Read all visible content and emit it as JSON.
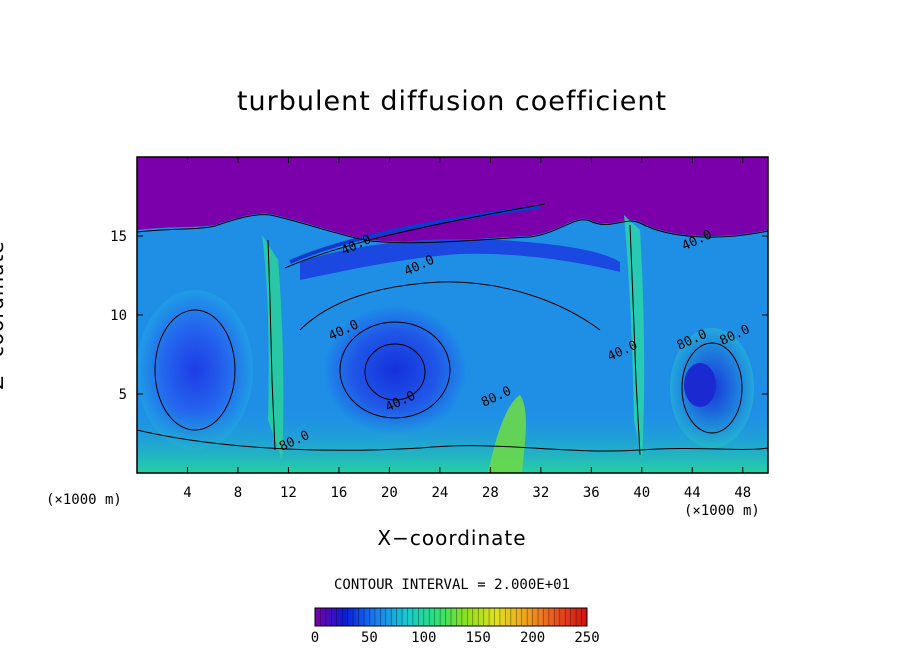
{
  "chart_data": {
    "type": "heatmap",
    "title": "turbulent diffusion coefficient",
    "xlabel": "X−coordinate",
    "ylabel": "Z−coordinate",
    "x_unit_label": "(×1000 m)",
    "y_unit_label": "(×1000 m)",
    "xlim": [
      0,
      50
    ],
    "ylim": [
      0,
      20
    ],
    "x_ticks": [
      4,
      8,
      12,
      16,
      20,
      24,
      28,
      32,
      36,
      40,
      44,
      48
    ],
    "y_ticks": [
      5,
      10,
      15
    ],
    "contour_interval_text": "CONTOUR INTERVAL = 2.000E+01",
    "contour_interval": 20,
    "colorbar": {
      "min": 0,
      "max": 250,
      "ticks": [
        0,
        50,
        100,
        150,
        200,
        250
      ],
      "colors": [
        "#7a00a8",
        "#0a1ed8",
        "#1a7cf0",
        "#19c8d0",
        "#29e07a",
        "#8ee01e",
        "#e0e01e",
        "#f0a01e",
        "#e8501e",
        "#d01010"
      ]
    },
    "background_color": "#7b00ac",
    "contour_labels": [
      {
        "text": "40.0",
        "x": 17.5,
        "z": 14.2
      },
      {
        "text": "40.0",
        "x": 22.5,
        "z": 12.9
      },
      {
        "text": "40.0",
        "x": 16.5,
        "z": 8.8
      },
      {
        "text": "40.0",
        "x": 21.0,
        "z": 4.3
      },
      {
        "text": "40.0",
        "x": 44.5,
        "z": 14.5
      },
      {
        "text": "80.0",
        "x": 28.6,
        "z": 4.6
      },
      {
        "text": "80.0",
        "x": 44.1,
        "z": 8.2
      },
      {
        "text": "80.0",
        "x": 47.5,
        "z": 8.5
      },
      {
        "text": "80.0",
        "x": 12.6,
        "z": 1.8
      },
      {
        "text": "40.0",
        "x": 38.6,
        "z": 7.5
      }
    ]
  }
}
